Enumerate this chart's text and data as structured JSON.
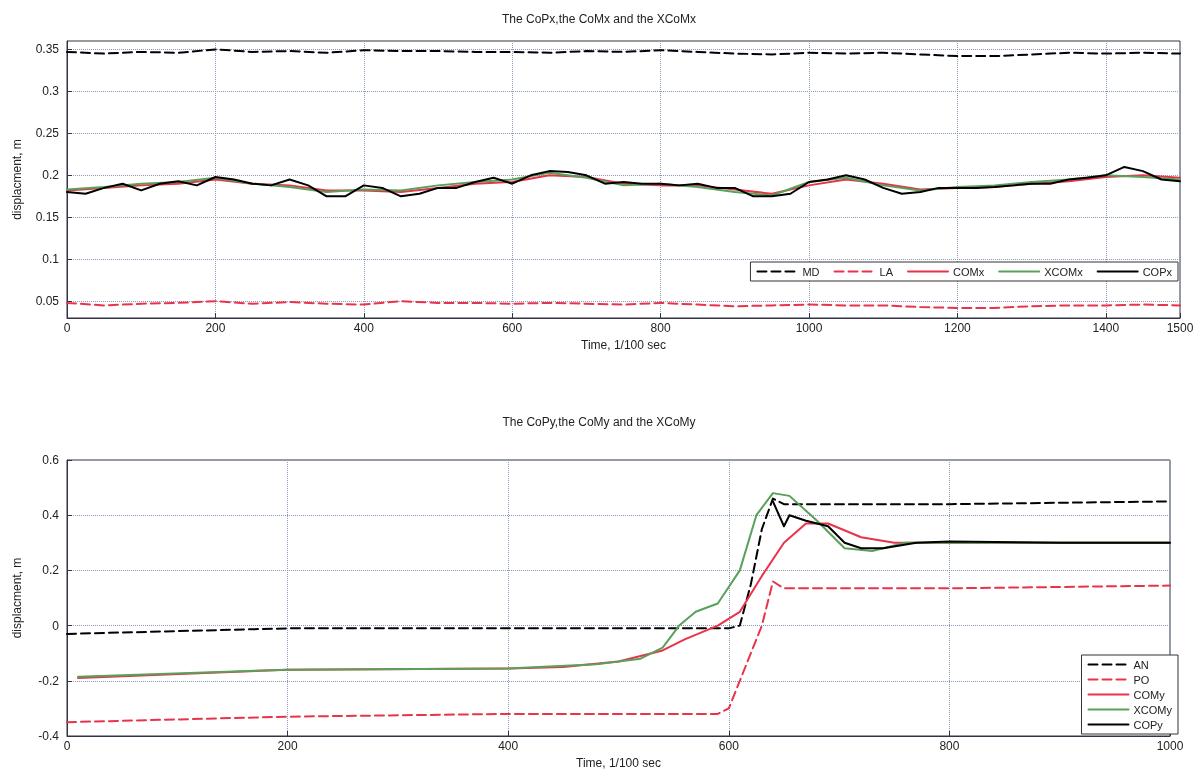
{
  "chart_data": [
    {
      "type": "line",
      "title": "The CoPx,the CoMx and the XCoMx",
      "xlabel": "Time, 1/100 sec",
      "ylabel": "displacment, m",
      "xlim": [
        0,
        1500
      ],
      "xticks": [
        0,
        200,
        400,
        600,
        800,
        1000,
        1200,
        1400,
        1500
      ],
      "ylim": [
        0.03,
        0.36
      ],
      "yticks": [
        0.05,
        0.1,
        0.15,
        0.2,
        0.25,
        0.3,
        0.35
      ],
      "grid": true,
      "legend": "bottom right",
      "series": [
        {
          "name": "MD",
          "color": "#000000",
          "line_style": "dashed",
          "x": [
            0,
            50,
            100,
            150,
            200,
            250,
            300,
            350,
            400,
            450,
            500,
            550,
            600,
            650,
            700,
            750,
            800,
            850,
            900,
            950,
            1000,
            1050,
            1100,
            1150,
            1200,
            1250,
            1300,
            1350,
            1400,
            1450,
            1500
          ],
          "values": [
            0.347,
            0.345,
            0.347,
            0.346,
            0.35,
            0.347,
            0.348,
            0.346,
            0.349,
            0.348,
            0.348,
            0.347,
            0.347,
            0.346,
            0.348,
            0.347,
            0.349,
            0.347,
            0.345,
            0.344,
            0.346,
            0.345,
            0.346,
            0.344,
            0.342,
            0.342,
            0.344,
            0.346,
            0.345,
            0.346,
            0.345
          ]
        },
        {
          "name": "LA",
          "color": "#e8334a",
          "line_style": "dashed",
          "x": [
            0,
            50,
            100,
            150,
            200,
            250,
            300,
            350,
            400,
            450,
            500,
            550,
            600,
            650,
            700,
            750,
            800,
            850,
            900,
            950,
            1000,
            1050,
            1100,
            1150,
            1200,
            1250,
            1300,
            1350,
            1400,
            1450,
            1500
          ],
          "values": [
            0.048,
            0.045,
            0.047,
            0.048,
            0.05,
            0.047,
            0.049,
            0.047,
            0.046,
            0.05,
            0.048,
            0.048,
            0.047,
            0.048,
            0.047,
            0.046,
            0.048,
            0.046,
            0.044,
            0.045,
            0.046,
            0.045,
            0.045,
            0.043,
            0.042,
            0.042,
            0.044,
            0.045,
            0.045,
            0.046,
            0.045
          ]
        },
        {
          "name": "COMx",
          "color": "#e8334a",
          "line_style": "solid",
          "x": [
            0,
            50,
            100,
            150,
            200,
            250,
            300,
            350,
            400,
            450,
            500,
            550,
            600,
            650,
            700,
            750,
            800,
            850,
            900,
            950,
            1000,
            1050,
            1100,
            1150,
            1200,
            1250,
            1300,
            1350,
            1400,
            1450,
            1500
          ],
          "values": [
            0.182,
            0.185,
            0.188,
            0.19,
            0.195,
            0.19,
            0.188,
            0.182,
            0.182,
            0.18,
            0.185,
            0.19,
            0.192,
            0.2,
            0.198,
            0.19,
            0.188,
            0.188,
            0.183,
            0.178,
            0.188,
            0.195,
            0.19,
            0.183,
            0.185,
            0.186,
            0.19,
            0.193,
            0.198,
            0.2,
            0.197
          ]
        },
        {
          "name": "XCOMx",
          "color": "#5aa05a",
          "line_style": "solid",
          "x": [
            0,
            50,
            100,
            150,
            200,
            250,
            300,
            350,
            400,
            450,
            500,
            550,
            600,
            650,
            700,
            750,
            800,
            850,
            900,
            950,
            1000,
            1050,
            1100,
            1150,
            1200,
            1250,
            1300,
            1350,
            1400,
            1450,
            1500
          ],
          "values": [
            0.183,
            0.186,
            0.19,
            0.192,
            0.197,
            0.19,
            0.186,
            0.18,
            0.183,
            0.182,
            0.188,
            0.192,
            0.195,
            0.203,
            0.197,
            0.188,
            0.19,
            0.186,
            0.18,
            0.176,
            0.192,
            0.197,
            0.188,
            0.182,
            0.186,
            0.188,
            0.192,
            0.195,
            0.2,
            0.198,
            0.195
          ]
        },
        {
          "name": "COPx",
          "color": "#000000",
          "line_style": "solid",
          "x": [
            0,
            25,
            50,
            75,
            100,
            125,
            150,
            175,
            200,
            225,
            250,
            275,
            300,
            325,
            350,
            375,
            400,
            425,
            450,
            475,
            500,
            525,
            550,
            575,
            600,
            625,
            650,
            675,
            700,
            725,
            750,
            775,
            800,
            825,
            850,
            875,
            900,
            925,
            950,
            975,
            1000,
            1025,
            1050,
            1075,
            1100,
            1125,
            1150,
            1175,
            1200,
            1225,
            1250,
            1275,
            1300,
            1325,
            1350,
            1375,
            1400,
            1425,
            1450,
            1475,
            1500
          ],
          "values": [
            0.18,
            0.178,
            0.185,
            0.19,
            0.182,
            0.19,
            0.193,
            0.188,
            0.198,
            0.195,
            0.19,
            0.188,
            0.195,
            0.188,
            0.175,
            0.175,
            0.188,
            0.185,
            0.175,
            0.178,
            0.185,
            0.185,
            0.192,
            0.197,
            0.19,
            0.2,
            0.205,
            0.204,
            0.2,
            0.19,
            0.192,
            0.19,
            0.19,
            0.188,
            0.19,
            0.185,
            0.185,
            0.175,
            0.175,
            0.178,
            0.192,
            0.195,
            0.2,
            0.195,
            0.185,
            0.178,
            0.18,
            0.185,
            0.185,
            0.185,
            0.186,
            0.188,
            0.19,
            0.19,
            0.195,
            0.197,
            0.2,
            0.21,
            0.205,
            0.195,
            0.193
          ]
        }
      ]
    },
    {
      "type": "line",
      "title": "The CoPy,the CoMy and the XCoMy",
      "xlabel": "Time, 1/100 sec",
      "ylabel": "displacment, m",
      "xlim": [
        0,
        1000
      ],
      "xticks": [
        0,
        200,
        400,
        600,
        800,
        1000
      ],
      "ylim": [
        -0.4,
        0.6
      ],
      "yticks": [
        -0.4,
        -0.2,
        0,
        0.2,
        0.4,
        0.6
      ],
      "grid": true,
      "legend": "bottom right",
      "series": [
        {
          "name": "AN",
          "color": "#000000",
          "line_style": "dashed",
          "x": [
            0,
            100,
            200,
            400,
            500,
            600,
            610,
            620,
            630,
            640,
            650,
            700,
            800,
            900,
            1000
          ],
          "values": [
            -0.03,
            -0.02,
            -0.01,
            -0.01,
            -0.01,
            -0.01,
            0.0,
            0.15,
            0.35,
            0.46,
            0.44,
            0.44,
            0.44,
            0.445,
            0.45
          ]
        },
        {
          "name": "PO",
          "color": "#e8334a",
          "line_style": "dashed",
          "x": [
            0,
            200,
            400,
            500,
            590,
            600,
            615,
            630,
            640,
            650,
            700,
            800,
            1000
          ],
          "values": [
            -0.35,
            -0.33,
            -0.32,
            -0.32,
            -0.32,
            -0.3,
            -0.15,
            0.0,
            0.16,
            0.135,
            0.135,
            0.135,
            0.145
          ]
        },
        {
          "name": "COMy",
          "color": "#e8334a",
          "line_style": "solid",
          "x": [
            10,
            200,
            400,
            450,
            500,
            540,
            560,
            590,
            610,
            630,
            650,
            670,
            690,
            720,
            750,
            800,
            1000
          ],
          "values": [
            -0.19,
            -0.16,
            -0.155,
            -0.15,
            -0.13,
            -0.09,
            -0.05,
            0.0,
            0.05,
            0.18,
            0.3,
            0.37,
            0.37,
            0.32,
            0.3,
            0.3,
            0.3
          ]
        },
        {
          "name": "XCOMy",
          "color": "#5aa05a",
          "line_style": "solid",
          "x": [
            10,
            200,
            400,
            480,
            520,
            540,
            555,
            570,
            590,
            610,
            625,
            640,
            655,
            680,
            705,
            730,
            760,
            800,
            1000
          ],
          "values": [
            -0.185,
            -0.16,
            -0.155,
            -0.14,
            -0.12,
            -0.08,
            0.0,
            0.05,
            0.08,
            0.2,
            0.4,
            0.48,
            0.47,
            0.38,
            0.28,
            0.27,
            0.3,
            0.3,
            0.3
          ]
        },
        {
          "name": "COPy",
          "color": "#000000",
          "line_style": "solid",
          "x": [
            640,
            650,
            655,
            670,
            690,
            705,
            720,
            740,
            770,
            800,
            900,
            1000
          ],
          "values": [
            0.45,
            0.36,
            0.4,
            0.38,
            0.36,
            0.3,
            0.28,
            0.28,
            0.3,
            0.305,
            0.3,
            0.3
          ]
        }
      ]
    }
  ]
}
